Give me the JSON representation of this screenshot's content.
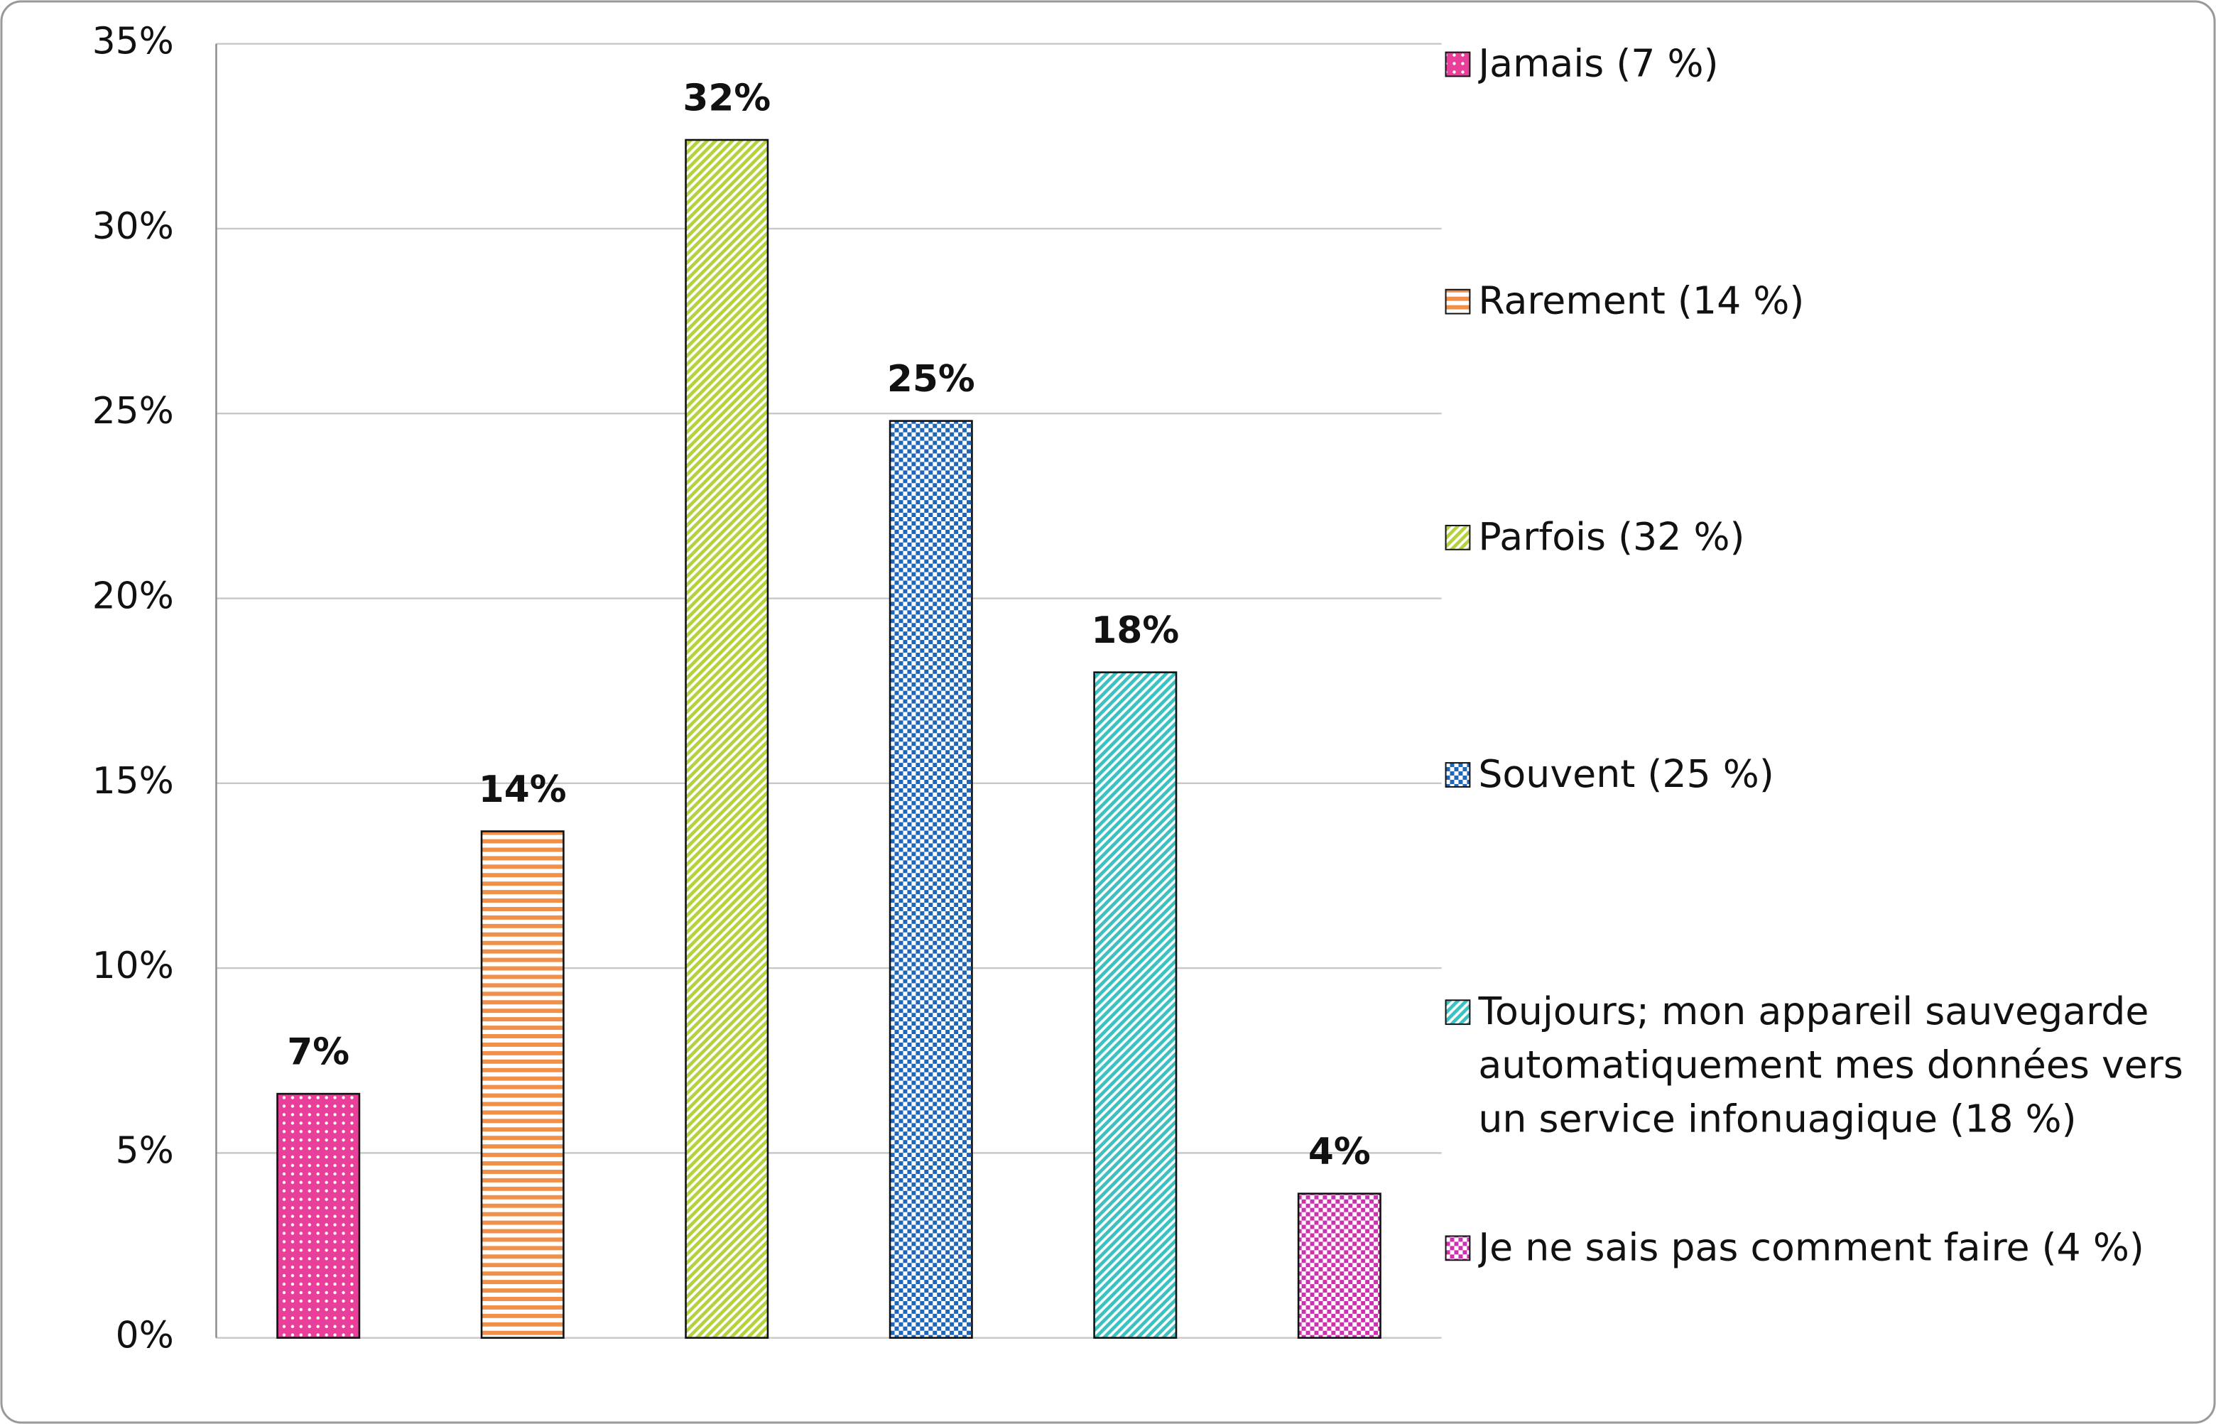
{
  "chart_data": {
    "type": "bar",
    "series": [
      {
        "name": "Jamais (7 %)",
        "color": "#e8409a",
        "pattern": "dots",
        "values": [
          6.6
        ],
        "value_labels": [
          "7%"
        ]
      },
      {
        "name": "Rarement (14 %)",
        "color": "#f0904a",
        "pattern": "hlines",
        "values": [
          13.7
        ],
        "value_labels": [
          "14%"
        ]
      },
      {
        "name": "Parfois (32 %)",
        "color": "#b4d23c",
        "pattern": "diag",
        "values": [
          32.4
        ],
        "value_labels": [
          "32%"
        ]
      },
      {
        "name": "Souvent (25 %)",
        "color": "#1f66b8",
        "pattern": "checker",
        "values": [
          24.8
        ],
        "value_labels": [
          "25%"
        ]
      },
      {
        "name": "Toujours; mon appareil sauvegarde automatiquement mes données vers un service infonuagique (18 %)",
        "color": "#3cc0c0",
        "pattern": "diag",
        "values": [
          18.0
        ],
        "value_labels": [
          "18%"
        ]
      },
      {
        "name": "Je ne sais pas comment faire (4 %)",
        "color": "#d030b0",
        "pattern": "checker",
        "values": [
          3.9
        ],
        "value_labels": [
          "4%"
        ]
      }
    ],
    "ylim": [
      0,
      35
    ],
    "yticks": [
      {
        "value": 0,
        "label": "0%"
      },
      {
        "value": 5,
        "label": "5%"
      },
      {
        "value": 10,
        "label": "10%"
      },
      {
        "value": 15,
        "label": "15%"
      },
      {
        "value": 20,
        "label": "20%"
      },
      {
        "value": 25,
        "label": "25%"
      },
      {
        "value": 30,
        "label": "30%"
      },
      {
        "value": 35,
        "label": "35%"
      }
    ],
    "grid": true,
    "legend": "right"
  }
}
